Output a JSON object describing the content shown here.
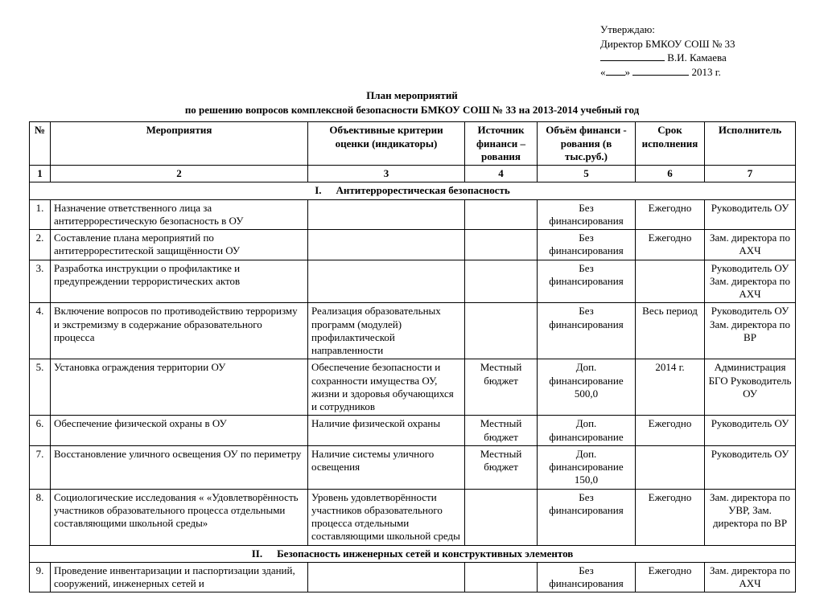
{
  "approval": {
    "line1": "Утверждаю:",
    "line2": "Директор БМКОУ СОШ № 33",
    "name": "В.И. Камаева",
    "year_suffix": "2013 г."
  },
  "title": {
    "line1": "План мероприятий",
    "line2": "по решению вопросов комплексной безопасности  БМКОУ СОШ № 33 на 2013-2014 учебный  год"
  },
  "headers": {
    "num": "№",
    "event": "Мероприятия",
    "criteria": "Объективные критерии оценки (индикаторы)",
    "source": "Источник финанси – рования",
    "volume": "Объём финанси - рования (в тыс.руб.)",
    "deadline": "Срок исполнения",
    "executor": "Исполнитель"
  },
  "colnums": {
    "c1": "1",
    "c2": "2",
    "c3": "3",
    "c4": "4",
    "c5": "5",
    "c6": "6",
    "c7": "7"
  },
  "sections": {
    "s1": {
      "roman": "I.",
      "title": "Антитеррорестическая безопасность"
    },
    "s2": {
      "roman": "II.",
      "title": "Безопасность инженерных сетей и конструктивных элементов"
    }
  },
  "rows": {
    "r1": {
      "n": "1.",
      "event": "Назначение ответственного лица за антитеррорестическую безопасность в ОУ",
      "criteria": "",
      "source": "",
      "volume": "Без финансирования",
      "deadline": "Ежегодно",
      "executor": "Руководитель ОУ"
    },
    "r2": {
      "n": "2.",
      "event": "Составление плана мероприятий по антитеррореститеской защищённости ОУ",
      "criteria": "",
      "source": "",
      "volume": "Без финансирования",
      "deadline": "Ежегодно",
      "executor": "Зам. директора по АХЧ"
    },
    "r3": {
      "n": "3.",
      "event": "Разработка инструкции о профилактике и предупреждении террористических актов",
      "criteria": "",
      "source": "",
      "volume": "Без финансирования",
      "deadline": "",
      "executor": "Руководитель ОУ Зам. директора по АХЧ"
    },
    "r4": {
      "n": "4.",
      "event": "Включение вопросов по противодействию терроризму и экстремизму в содержание образовательного процесса",
      "criteria": "Реализация образовательных программ (модулей) профилактической направленности",
      "source": "",
      "volume": "Без финансирования",
      "deadline": "Весь период",
      "executor": "Руководитель ОУ Зам. директора по ВР"
    },
    "r5": {
      "n": "5.",
      "event": "Установка ограждения территории ОУ",
      "criteria": "Обеспечение безопасности и сохранности имущества ОУ, жизни и здоровья обучающихся и сотрудников",
      "source": "Местный бюджет",
      "volume": "Доп. финансирование 500,0",
      "deadline": "2014 г.",
      "executor": "Администрация БГО Руководитель ОУ"
    },
    "r6": {
      "n": "6.",
      "event": "Обеспечение физической охраны в ОУ",
      "criteria": "Наличие физической охраны",
      "source": "Местный бюджет",
      "volume": "Доп. финансирование",
      "deadline": "Ежегодно",
      "executor": "Руководитель ОУ"
    },
    "r7": {
      "n": "7.",
      "event": "Восстановление уличного освещения ОУ по периметру",
      "criteria": "Наличие системы уличного освещения",
      "source": "Местный бюджет",
      "volume": "Доп. финансирование 150,0",
      "deadline": "",
      "executor": "Руководитель ОУ"
    },
    "r8": {
      "n": "8.",
      "event": "Социологические исследования « «Удовлетворённость участников образовательного процесса отдельными составляющими школьной среды»",
      "criteria": "Уровень удовлетворённости участников образовательного процесса отдельными составляющими школьной среды",
      "source": "",
      "volume": "Без финансирования",
      "deadline": "Ежегодно",
      "executor": "Зам. директора по УВР, Зам. директора по ВР"
    },
    "r9": {
      "n": "9.",
      "event": "Проведение инвентаризации и паспортизации зданий, сооружений, инженерных сетей и",
      "criteria": "",
      "source": "",
      "volume": "Без финансирования",
      "deadline": "Ежегодно",
      "executor": "Зам. директора по АХЧ"
    }
  }
}
